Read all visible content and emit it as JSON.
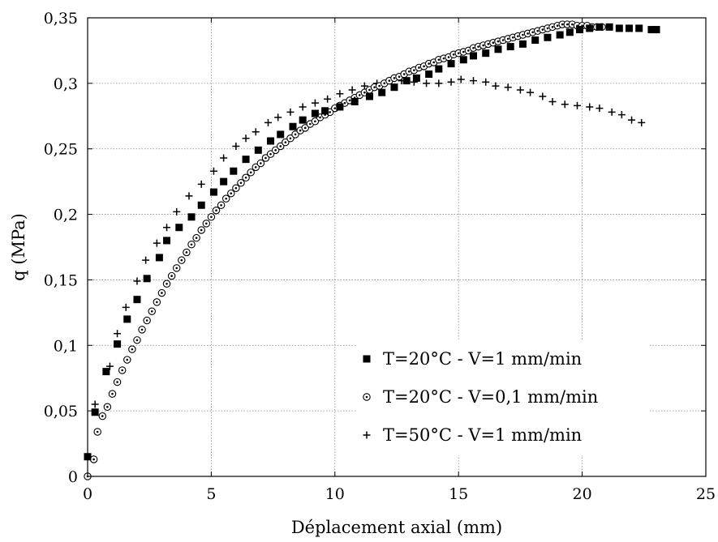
{
  "chart_data": {
    "type": "scatter",
    "title": "",
    "xlabel": "Déplacement axial (mm)",
    "ylabel": "q (MPa)",
    "xlim": [
      0,
      25
    ],
    "ylim": [
      0,
      0.35
    ],
    "x_ticks": [
      "0",
      "5",
      "10",
      "15",
      "20",
      "25"
    ],
    "y_ticks": [
      "0",
      "0,05",
      "0,1",
      "0,15",
      "0,2",
      "0,25",
      "0,3",
      "0,35"
    ],
    "grid": true,
    "legend_position": "bottom-right",
    "series": [
      {
        "name": "T=20°C - V=1 mm/min",
        "marker": "square",
        "color": "#000000",
        "points": [
          [
            0.0,
            0.015
          ],
          [
            0.3,
            0.049
          ],
          [
            0.75,
            0.08
          ],
          [
            1.2,
            0.101
          ],
          [
            1.6,
            0.12
          ],
          [
            2.0,
            0.135
          ],
          [
            2.4,
            0.151
          ],
          [
            2.9,
            0.167
          ],
          [
            3.2,
            0.18
          ],
          [
            3.7,
            0.19
          ],
          [
            4.2,
            0.198
          ],
          [
            4.6,
            0.207
          ],
          [
            5.1,
            0.217
          ],
          [
            5.5,
            0.225
          ],
          [
            5.9,
            0.233
          ],
          [
            6.4,
            0.242
          ],
          [
            6.9,
            0.249
          ],
          [
            7.4,
            0.256
          ],
          [
            7.8,
            0.261
          ],
          [
            8.3,
            0.267
          ],
          [
            8.7,
            0.272
          ],
          [
            9.2,
            0.277
          ],
          [
            9.6,
            0.279
          ],
          [
            10.2,
            0.282
          ],
          [
            10.8,
            0.286
          ],
          [
            11.4,
            0.29
          ],
          [
            11.9,
            0.293
          ],
          [
            12.4,
            0.297
          ],
          [
            12.9,
            0.302
          ],
          [
            13.3,
            0.304
          ],
          [
            13.8,
            0.307
          ],
          [
            14.2,
            0.311
          ],
          [
            14.7,
            0.315
          ],
          [
            15.2,
            0.318
          ],
          [
            15.6,
            0.321
          ],
          [
            16.1,
            0.323
          ],
          [
            16.6,
            0.326
          ],
          [
            17.1,
            0.328
          ],
          [
            17.6,
            0.33
          ],
          [
            18.1,
            0.333
          ],
          [
            18.6,
            0.335
          ],
          [
            19.1,
            0.337
          ],
          [
            19.5,
            0.339
          ],
          [
            19.9,
            0.341
          ],
          [
            20.3,
            0.342
          ],
          [
            20.7,
            0.343
          ],
          [
            21.1,
            0.343
          ],
          [
            21.5,
            0.342
          ],
          [
            21.9,
            0.342
          ],
          [
            22.3,
            0.342
          ],
          [
            22.8,
            0.341
          ],
          [
            23.0,
            0.341
          ]
        ]
      },
      {
        "name": "T=20°C - V=0,1 mm/min",
        "marker": "circle",
        "color": "#000000",
        "points": [
          [
            0.0,
            0.0
          ],
          [
            0.25,
            0.013
          ],
          [
            0.4,
            0.034
          ],
          [
            0.6,
            0.046
          ],
          [
            0.8,
            0.053
          ],
          [
            1.0,
            0.063
          ],
          [
            1.2,
            0.072
          ],
          [
            1.4,
            0.081
          ],
          [
            1.6,
            0.089
          ],
          [
            1.8,
            0.097
          ],
          [
            2.0,
            0.104
          ],
          [
            2.2,
            0.112
          ],
          [
            2.4,
            0.119
          ],
          [
            2.6,
            0.126
          ],
          [
            2.8,
            0.133
          ],
          [
            3.0,
            0.14
          ],
          [
            3.2,
            0.147
          ],
          [
            3.4,
            0.153
          ],
          [
            3.6,
            0.159
          ],
          [
            3.8,
            0.165
          ],
          [
            4.0,
            0.171
          ],
          [
            4.2,
            0.177
          ],
          [
            4.4,
            0.182
          ],
          [
            4.6,
            0.188
          ],
          [
            4.8,
            0.193
          ],
          [
            5.0,
            0.198
          ],
          [
            5.2,
            0.203
          ],
          [
            5.4,
            0.207
          ],
          [
            5.6,
            0.212
          ],
          [
            5.8,
            0.216
          ],
          [
            6.0,
            0.22
          ],
          [
            6.2,
            0.224
          ],
          [
            6.4,
            0.228
          ],
          [
            6.6,
            0.232
          ],
          [
            6.8,
            0.236
          ],
          [
            7.0,
            0.239
          ],
          [
            7.2,
            0.243
          ],
          [
            7.4,
            0.246
          ],
          [
            7.6,
            0.249
          ],
          [
            7.8,
            0.252
          ],
          [
            8.0,
            0.255
          ],
          [
            8.2,
            0.258
          ],
          [
            8.4,
            0.261
          ],
          [
            8.6,
            0.264
          ],
          [
            8.8,
            0.266
          ],
          [
            9.0,
            0.269
          ],
          [
            9.2,
            0.271
          ],
          [
            9.4,
            0.274
          ],
          [
            9.6,
            0.276
          ],
          [
            9.8,
            0.278
          ],
          [
            10.0,
            0.281
          ],
          [
            10.2,
            0.283
          ],
          [
            10.4,
            0.285
          ],
          [
            10.6,
            0.287
          ],
          [
            10.8,
            0.289
          ],
          [
            11.0,
            0.291
          ],
          [
            11.2,
            0.293
          ],
          [
            11.4,
            0.295
          ],
          [
            11.6,
            0.297
          ],
          [
            11.8,
            0.298
          ],
          [
            12.0,
            0.3
          ],
          [
            12.2,
            0.302
          ],
          [
            12.4,
            0.304
          ],
          [
            12.6,
            0.305
          ],
          [
            12.8,
            0.307
          ],
          [
            13.0,
            0.309
          ],
          [
            13.2,
            0.31
          ],
          [
            13.4,
            0.312
          ],
          [
            13.6,
            0.313
          ],
          [
            13.8,
            0.315
          ],
          [
            14.0,
            0.316
          ],
          [
            14.2,
            0.318
          ],
          [
            14.4,
            0.319
          ],
          [
            14.6,
            0.32
          ],
          [
            14.8,
            0.322
          ],
          [
            15.0,
            0.323
          ],
          [
            15.2,
            0.324
          ],
          [
            15.4,
            0.325
          ],
          [
            15.6,
            0.327
          ],
          [
            15.8,
            0.328
          ],
          [
            16.0,
            0.329
          ],
          [
            16.2,
            0.33
          ],
          [
            16.4,
            0.331
          ],
          [
            16.6,
            0.332
          ],
          [
            16.8,
            0.333
          ],
          [
            17.0,
            0.334
          ],
          [
            17.2,
            0.335
          ],
          [
            17.4,
            0.336
          ],
          [
            17.6,
            0.337
          ],
          [
            17.8,
            0.338
          ],
          [
            18.0,
            0.339
          ],
          [
            18.2,
            0.34
          ],
          [
            18.4,
            0.341
          ],
          [
            18.6,
            0.342
          ],
          [
            18.8,
            0.343
          ],
          [
            19.0,
            0.344
          ],
          [
            19.2,
            0.345
          ],
          [
            19.4,
            0.345
          ],
          [
            19.6,
            0.345
          ],
          [
            19.8,
            0.344
          ],
          [
            20.0,
            0.344
          ],
          [
            20.2,
            0.344
          ],
          [
            20.4,
            0.343
          ],
          [
            20.6,
            0.343
          ],
          [
            20.8,
            0.343
          ]
        ]
      },
      {
        "name": "T=50°C - V=1 mm/min",
        "marker": "plus",
        "color": "#000000",
        "points": [
          [
            0.0,
            0.0
          ],
          [
            0.3,
            0.055
          ],
          [
            0.9,
            0.084
          ],
          [
            1.2,
            0.109
          ],
          [
            1.55,
            0.129
          ],
          [
            2.0,
            0.149
          ],
          [
            2.35,
            0.165
          ],
          [
            2.8,
            0.178
          ],
          [
            3.2,
            0.19
          ],
          [
            3.6,
            0.202
          ],
          [
            4.1,
            0.214
          ],
          [
            4.6,
            0.223
          ],
          [
            5.1,
            0.233
          ],
          [
            5.5,
            0.243
          ],
          [
            6.0,
            0.252
          ],
          [
            6.4,
            0.258
          ],
          [
            6.8,
            0.263
          ],
          [
            7.3,
            0.27
          ],
          [
            7.7,
            0.274
          ],
          [
            8.2,
            0.278
          ],
          [
            8.7,
            0.282
          ],
          [
            9.2,
            0.285
          ],
          [
            9.7,
            0.288
          ],
          [
            10.2,
            0.292
          ],
          [
            10.7,
            0.295
          ],
          [
            11.2,
            0.298
          ],
          [
            11.7,
            0.3
          ],
          [
            12.2,
            0.302
          ],
          [
            12.7,
            0.302
          ],
          [
            13.2,
            0.301
          ],
          [
            13.7,
            0.3
          ],
          [
            14.2,
            0.3
          ],
          [
            14.7,
            0.301
          ],
          [
            15.1,
            0.303
          ],
          [
            15.6,
            0.302
          ],
          [
            16.1,
            0.301
          ],
          [
            16.5,
            0.298
          ],
          [
            17.0,
            0.297
          ],
          [
            17.5,
            0.295
          ],
          [
            17.9,
            0.293
          ],
          [
            18.4,
            0.29
          ],
          [
            18.8,
            0.286
          ],
          [
            19.3,
            0.284
          ],
          [
            19.8,
            0.283
          ],
          [
            20.3,
            0.282
          ],
          [
            20.7,
            0.281
          ],
          [
            21.2,
            0.278
          ],
          [
            21.6,
            0.276
          ],
          [
            22.0,
            0.272
          ],
          [
            22.4,
            0.27
          ]
        ]
      }
    ]
  }
}
